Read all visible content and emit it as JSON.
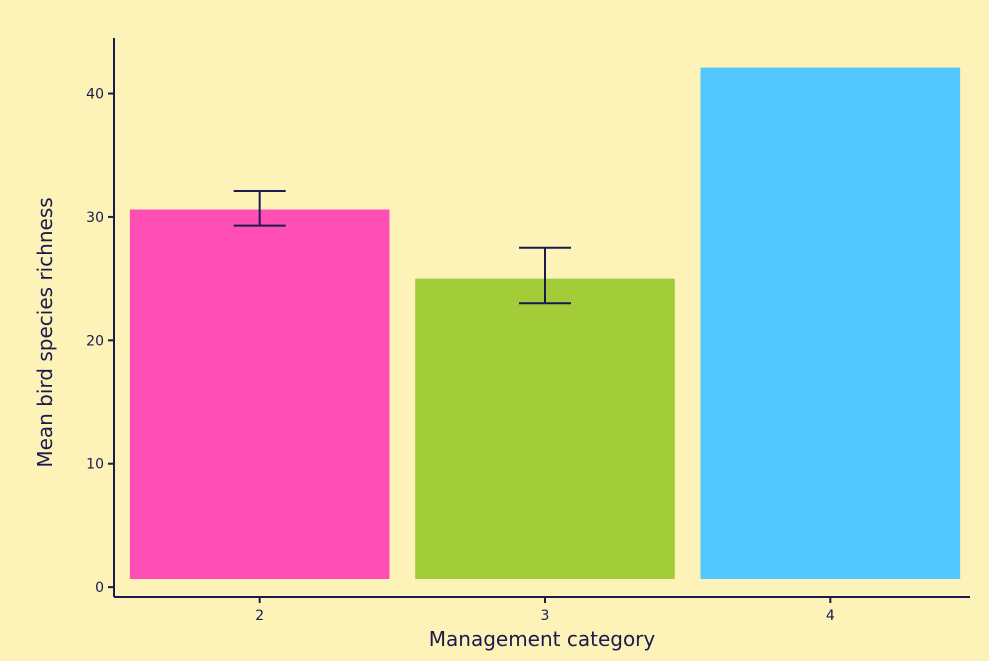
{
  "chart_data": {
    "type": "bar",
    "categories": [
      "2",
      "3",
      "4"
    ],
    "values": [
      30.6,
      25.0,
      42.1
    ],
    "error_bars": [
      {
        "low": 29.3,
        "high": 32.1
      },
      {
        "low": 23.0,
        "high": 27.5
      },
      null
    ],
    "colors": [
      "#ff4fb5",
      "#a2cd38",
      "#52c8fe"
    ],
    "title": "",
    "xlabel": "Management category",
    "ylabel": "Mean bird species richness",
    "ylim": [
      -0.8,
      44.5
    ],
    "yticks": [
      0,
      10,
      20,
      30,
      40
    ],
    "ytick_labels": [
      "0",
      "10",
      "20",
      "30",
      "40"
    ],
    "grid": false,
    "legend": "none",
    "background_color": "#fdf2b8",
    "axis_color": "#1a1a4e",
    "errorbar_color": "#1a1a4e"
  }
}
